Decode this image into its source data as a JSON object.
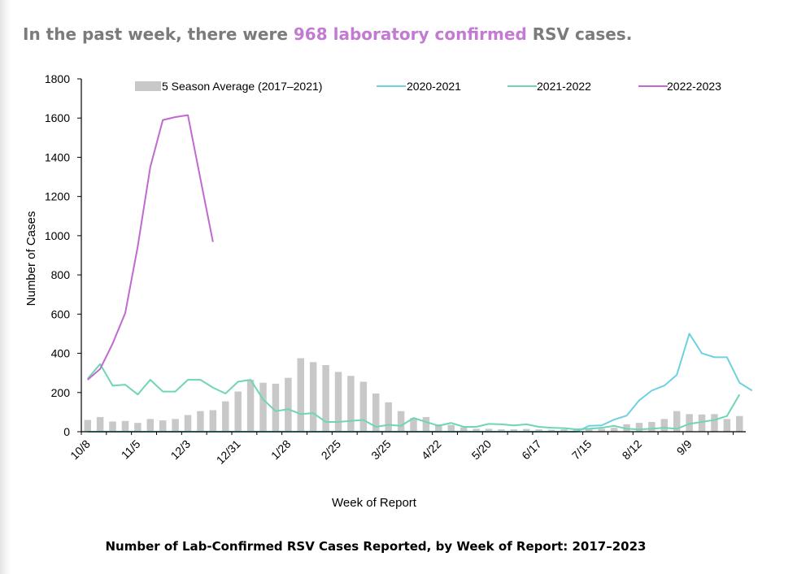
{
  "headline": {
    "prefix": "In the past week, there were ",
    "highlight": "968 laboratory confirmed",
    "suffix": " RSV cases."
  },
  "colors": {
    "headline_gray": "#7b7b7b",
    "highlight_purple": "#c27bd0",
    "bars": "#c8c8c8",
    "line_2020_2021": "#6fd0e0",
    "line_2021_2022": "#6ed6b4",
    "line_2022_2023": "#c06ad0"
  },
  "chart_data": {
    "type": "bar",
    "title": "Number of Lab-Confirmed RSV Cases Reported, by Week of Report: 2017–2023",
    "xlabel": "Week of Report",
    "ylabel": "Number of Cases",
    "ylim": [
      0,
      1800
    ],
    "yticks": [
      0,
      200,
      400,
      600,
      800,
      1000,
      1200,
      1400,
      1600,
      1800
    ],
    "x_tick_labels": [
      "10/8",
      "11/5",
      "12/3",
      "12/31",
      "1/28",
      "2/25",
      "3/25",
      "4/22",
      "5/20",
      "6/17",
      "7/15",
      "8/12",
      "9/9"
    ],
    "legend_position": "top",
    "grid": false,
    "series": [
      {
        "name": "5 Season Average (2017–2021)",
        "kind": "bar",
        "values": [
          60,
          75,
          52,
          55,
          45,
          65,
          58,
          65,
          85,
          105,
          110,
          155,
          205,
          265,
          250,
          245,
          275,
          375,
          355,
          340,
          305,
          285,
          255,
          195,
          150,
          105,
          70,
          75,
          38,
          35,
          22,
          15,
          15,
          12,
          12,
          14,
          12,
          10,
          12,
          10,
          12,
          15,
          20,
          38,
          45,
          50,
          65,
          105,
          90,
          88,
          90,
          65,
          80
        ]
      },
      {
        "name": "2020-2021",
        "kind": "line",
        "values": [
          0,
          0,
          0,
          0,
          0,
          0,
          0,
          0,
          0,
          0,
          0,
          0,
          0,
          0,
          0,
          0,
          0,
          0,
          0,
          0,
          0,
          0,
          0,
          0,
          0,
          0,
          0,
          0,
          0,
          0,
          0,
          0,
          0,
          0,
          0,
          0,
          0,
          0,
          0,
          0,
          30,
          32,
          62,
          82,
          160,
          210,
          235,
          290,
          500,
          400,
          380,
          380,
          250,
          210
        ]
      },
      {
        "name": "2021-2022",
        "kind": "line",
        "values": [
          270,
          345,
          235,
          240,
          190,
          265,
          205,
          205,
          265,
          265,
          225,
          195,
          255,
          265,
          165,
          105,
          115,
          90,
          95,
          50,
          50,
          55,
          60,
          25,
          35,
          30,
          70,
          50,
          30,
          45,
          25,
          25,
          40,
          38,
          32,
          38,
          25,
          20,
          18,
          12,
          15,
          20,
          30,
          15,
          12,
          15,
          20,
          15,
          40,
          50,
          60,
          80,
          190
        ]
      },
      {
        "name": "2022-2023",
        "kind": "line",
        "values": [
          265,
          320,
          450,
          605,
          945,
          1350,
          1590,
          1605,
          1615,
          1290,
          968
        ]
      }
    ]
  }
}
